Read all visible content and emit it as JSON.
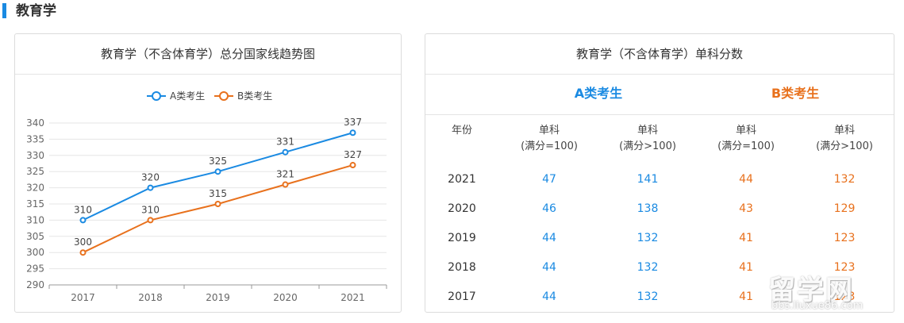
{
  "section": {
    "title": "教育学"
  },
  "left_panel": {
    "title": "教育学（不含体育学）总分国家线趋势图"
  },
  "chart_data": {
    "type": "line",
    "title": "教育学（不含体育学）总分国家线趋势图",
    "categories": [
      "2017",
      "2018",
      "2019",
      "2020",
      "2021"
    ],
    "series": [
      {
        "name": "A类考生",
        "values": [
          310,
          320,
          325,
          331,
          337
        ],
        "color": "#1a8ae2"
      },
      {
        "name": "B类考生",
        "values": [
          300,
          310,
          315,
          321,
          327
        ],
        "color": "#e8711d"
      }
    ],
    "yticks": [
      290,
      295,
      300,
      305,
      310,
      315,
      320,
      325,
      330,
      335,
      340
    ],
    "ylim": [
      290,
      340
    ],
    "grid": true,
    "legend_position": "top"
  },
  "right_panel": {
    "title": "教育学（不含体育学）单科分数",
    "cat_a": "A类考生",
    "cat_b": "B类考生",
    "header": {
      "year": "年份",
      "cols": [
        {
          "l1": "单科",
          "l2": "(满分=100)"
        },
        {
          "l1": "单科",
          "l2": "(满分>100)"
        },
        {
          "l1": "单科",
          "l2": "(满分=100)"
        },
        {
          "l1": "单科",
          "l2": "(满分>100)"
        }
      ]
    },
    "rows": [
      {
        "year": "2021",
        "a100": "47",
        "a_over": "141",
        "b100": "44",
        "b_over": "132"
      },
      {
        "year": "2020",
        "a100": "46",
        "a_over": "138",
        "b100": "43",
        "b_over": "129"
      },
      {
        "year": "2019",
        "a100": "44",
        "a_over": "132",
        "b100": "41",
        "b_over": "123"
      },
      {
        "year": "2018",
        "a100": "44",
        "a_over": "132",
        "b100": "41",
        "b_over": "123"
      },
      {
        "year": "2017",
        "a100": "44",
        "a_over": "132",
        "b100": "41",
        "b_over": "123"
      }
    ]
  },
  "watermark": {
    "big": "留学网",
    "small": "bbs.liuxue86.com"
  }
}
